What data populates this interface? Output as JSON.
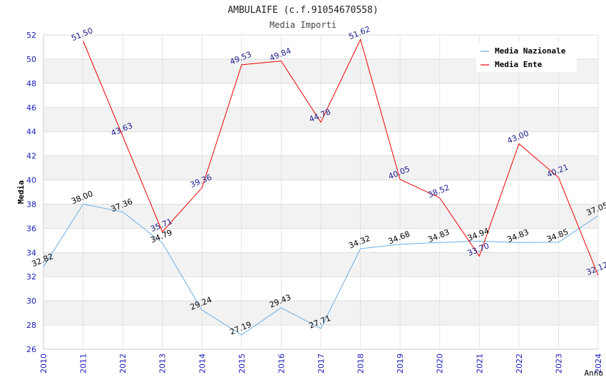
{
  "chart_data": {
    "type": "line",
    "title": "AMBULAIFE (c.f.91054670558)",
    "subtitle": "Media Importi",
    "xlabel": "Anno",
    "ylabel": "Media",
    "ylim": [
      26,
      52
    ],
    "yticks": [
      26,
      28,
      30,
      32,
      34,
      36,
      38,
      40,
      42,
      44,
      46,
      48,
      50,
      52
    ],
    "x": [
      2010,
      2011,
      2012,
      2013,
      2014,
      2015,
      2016,
      2017,
      2018,
      2019,
      2020,
      2021,
      2022,
      2023,
      2024
    ],
    "legend_position": "top-right",
    "series": [
      {
        "name": "Media Nazionale",
        "color": "#6aaee6",
        "label_color": "#000000",
        "x": [
          2010,
          2011,
          2012,
          2013,
          2014,
          2015,
          2016,
          2017,
          2018,
          2019,
          2020,
          2021,
          2022,
          2023,
          2024
        ],
        "values": [
          32.82,
          38.0,
          37.36,
          34.79,
          29.24,
          27.19,
          29.43,
          27.71,
          34.32,
          34.68,
          34.83,
          34.94,
          34.83,
          34.85,
          37.05
        ],
        "labels": [
          "32.82",
          "38.00",
          "37.36",
          "34.79",
          "29.24",
          "27.19",
          "29.43",
          "27.71",
          "34.32",
          "34.68",
          "34.83",
          "34.94",
          "34.83",
          "34.85",
          "37.05"
        ]
      },
      {
        "name": "Media Ente",
        "color": "#ee0000",
        "label_color": "#1a1a8c",
        "x": [
          2011,
          2012,
          2013,
          2014,
          2015,
          2016,
          2017,
          2018,
          2019,
          2020,
          2021,
          2022,
          2023,
          2024
        ],
        "values": [
          51.5,
          43.63,
          35.71,
          39.36,
          49.53,
          49.84,
          44.78,
          51.62,
          40.05,
          38.52,
          33.7,
          43.0,
          40.21,
          32.12
        ],
        "labels": [
          "51.50",
          "43.63",
          "35.71",
          "39.36",
          "49.53",
          "49.84",
          "44.78",
          "51.62",
          "40.05",
          "38.52",
          "33.70",
          "43.00",
          "40.21",
          "32.12"
        ]
      }
    ]
  }
}
